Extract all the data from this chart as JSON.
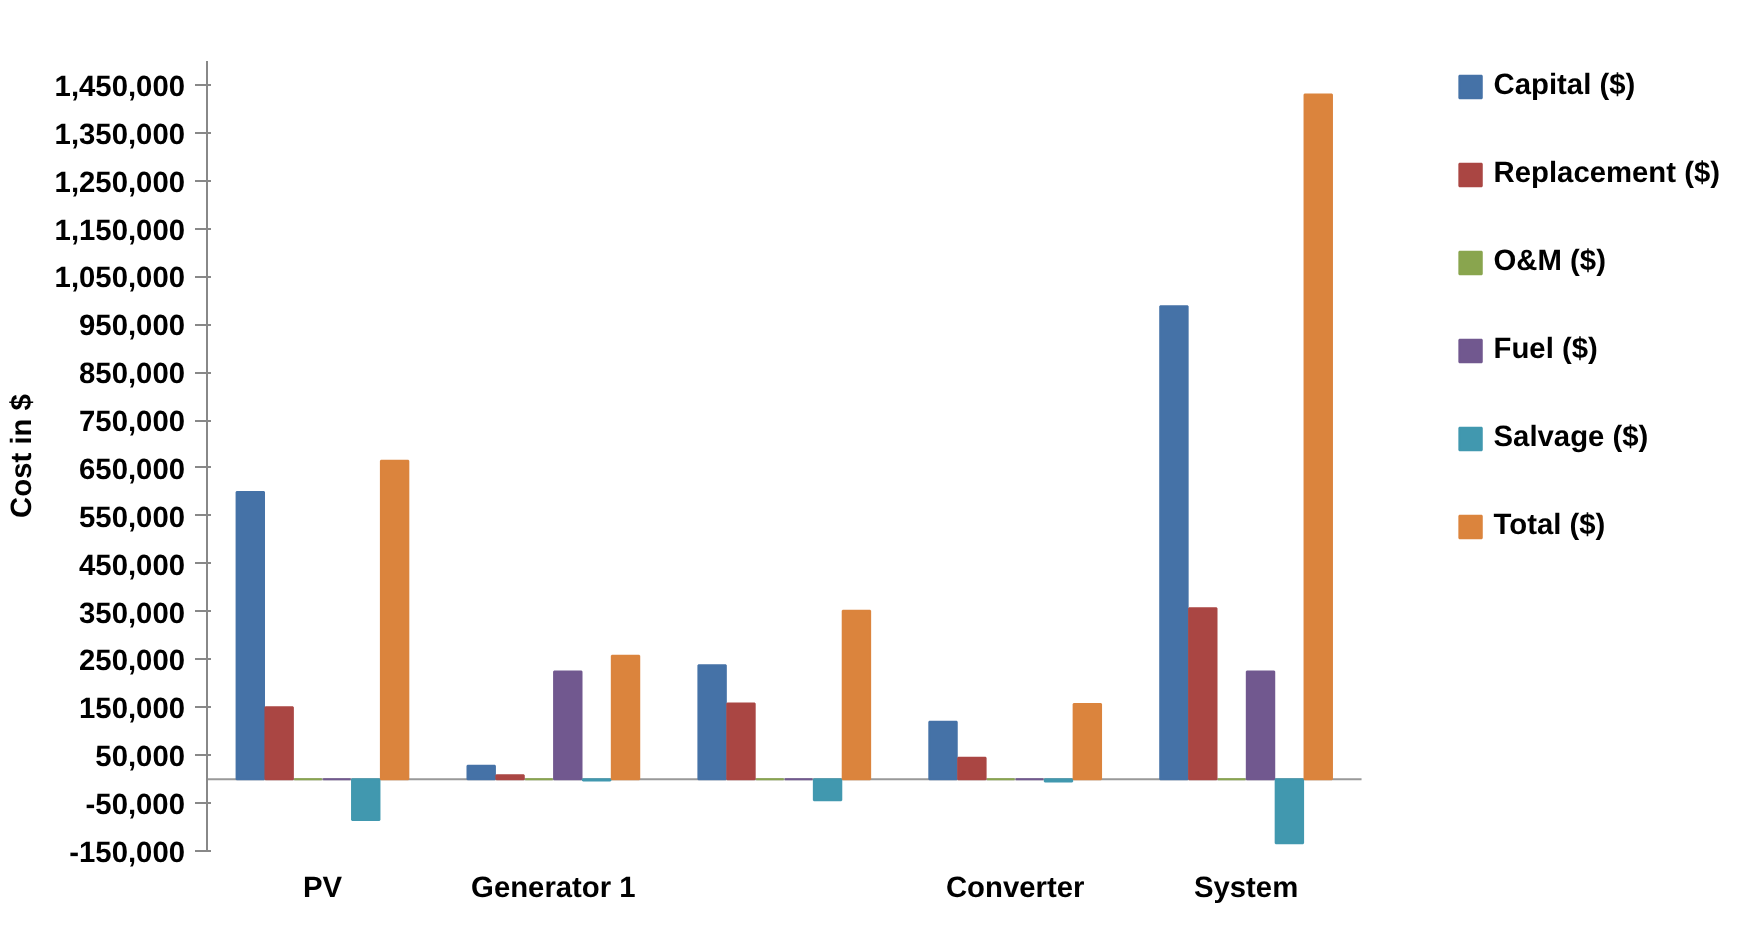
{
  "chart_data": {
    "type": "bar",
    "ylabel": "Cost in $",
    "categories": [
      "PV",
      "Generator 1",
      null,
      "Converter",
      "System"
    ],
    "series": [
      {
        "name": "Capital ($)",
        "color": "#4572a7",
        "values": [
          600000,
          28000,
          238000,
          120000,
          988000
        ]
      },
      {
        "name": "Replacement ($)",
        "color": "#aa4643",
        "values": [
          150000,
          8000,
          158000,
          45000,
          357000
        ]
      },
      {
        "name": "O&M ($)",
        "color": "#89a54e",
        "values": [
          0,
          0,
          0,
          0,
          0
        ]
      },
      {
        "name": "Fuel ($)",
        "color": "#71588f",
        "values": [
          0,
          225000,
          0,
          0,
          225000
        ]
      },
      {
        "name": "Salvage ($)",
        "color": "#4198af",
        "values": [
          -85000,
          -3000,
          -44000,
          -5000,
          -134000
        ]
      },
      {
        "name": "Total ($)",
        "color": "#db843d",
        "values": [
          665000,
          258000,
          352000,
          157000,
          1430000
        ]
      }
    ],
    "ylim": [
      -150000,
      1500000
    ],
    "yticks": [
      {
        "value": -150000,
        "label": "-150,000"
      },
      {
        "value": -50000,
        "label": "-50,000"
      },
      {
        "value": 50000,
        "label": "50,000"
      },
      {
        "value": 150000,
        "label": "150,000"
      },
      {
        "value": 250000,
        "label": "250,000"
      },
      {
        "value": 350000,
        "label": "350,000"
      },
      {
        "value": 450000,
        "label": "450,000"
      },
      {
        "value": 550000,
        "label": "550,000"
      },
      {
        "value": 650000,
        "label": "650,000"
      },
      {
        "value": 750000,
        "label": "750,000"
      },
      {
        "value": 850000,
        "label": "850,000"
      },
      {
        "value": 950000,
        "label": "950,000"
      },
      {
        "value": 1050000,
        "label": "1,050,000"
      },
      {
        "value": 1150000,
        "label": "1,150,000"
      },
      {
        "value": 1250000,
        "label": "1,250,000"
      },
      {
        "value": 1350000,
        "label": "1,350,000"
      },
      {
        "value": 1450000,
        "label": "1,450,000"
      }
    ],
    "grid": false,
    "legend": "right"
  }
}
